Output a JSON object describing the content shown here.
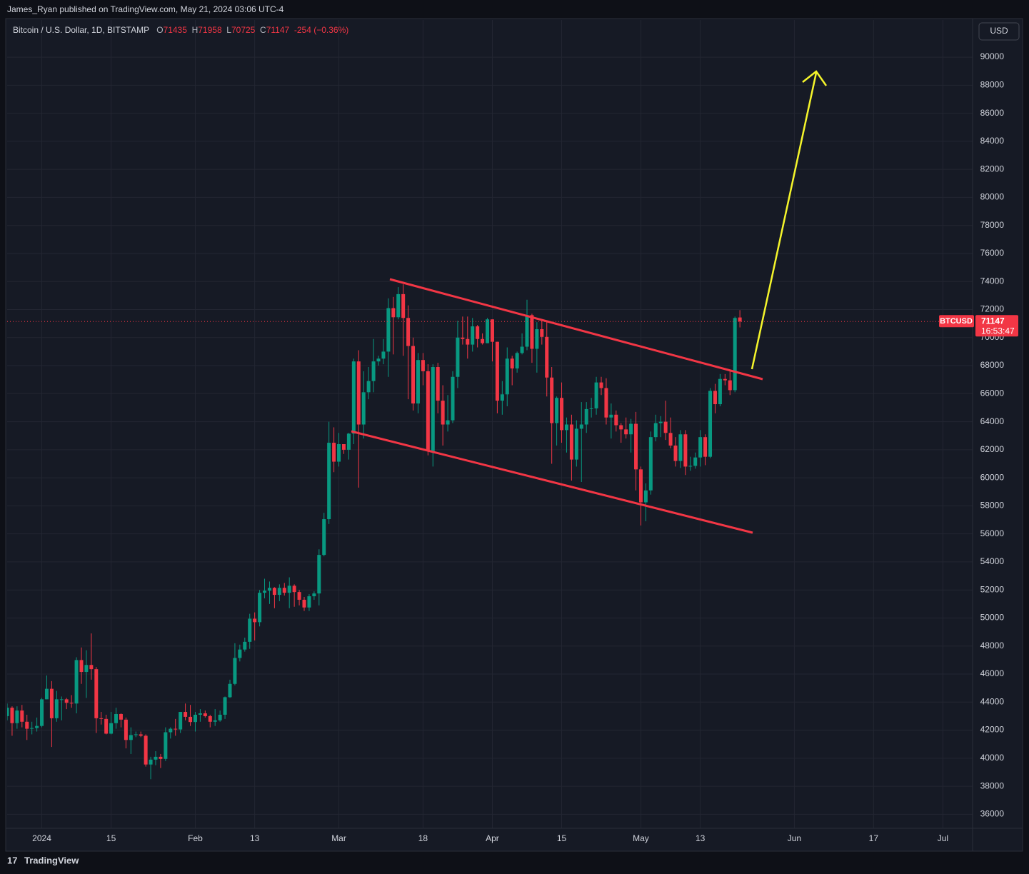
{
  "header": {
    "published": "James_Ryan published on TradingView.com, May 21, 2024 03:06 UTC-4",
    "brand": "TradingView"
  },
  "chart_data": {
    "type": "candlestick",
    "symbol": "Bitcoin / U.S. Dollar, 1D, BITSTAMP",
    "ohlc_labels": {
      "open": "O",
      "high": "H",
      "low": "L",
      "close": "C"
    },
    "change": -254,
    "change_pct": "(−0.36%)",
    "price_tag": "BTCUSD",
    "countdown": "16:53:47",
    "currency": "USD",
    "up_color": "#089981",
    "down_color": "#f23645",
    "grid": true,
    "ylim": [
      35000,
      92550
    ],
    "yticks": [
      36000,
      38000,
      40000,
      42000,
      44000,
      46000,
      48000,
      50000,
      52000,
      54000,
      56000,
      58000,
      60000,
      62000,
      64000,
      66000,
      68000,
      70000,
      72000,
      74000,
      76000,
      78000,
      80000,
      82000,
      84000,
      86000,
      88000,
      90000
    ],
    "xlim": [
      "2023-12-25",
      "2024-07-07"
    ],
    "xticks": [
      {
        "value": "2024-01-01",
        "label": "2024"
      },
      {
        "value": "2024-01-15",
        "label": "15"
      },
      {
        "value": "2024-02-01",
        "label": "Feb"
      },
      {
        "value": "2024-02-13",
        "label": "13"
      },
      {
        "value": "2024-03-01",
        "label": "Mar"
      },
      {
        "value": "2024-03-18",
        "label": "18"
      },
      {
        "value": "2024-04-01",
        "label": "Apr"
      },
      {
        "value": "2024-04-15",
        "label": "15"
      },
      {
        "value": "2024-05-01",
        "label": "May"
      },
      {
        "value": "2024-05-13",
        "label": "13"
      },
      {
        "value": "2024-06-01",
        "label": "Jun"
      },
      {
        "value": "2024-06-17",
        "label": "17"
      },
      {
        "value": "2024-07-01",
        "label": "Jul"
      }
    ],
    "x": [
      "2023-12-25",
      "2023-12-26",
      "2023-12-27",
      "2023-12-28",
      "2023-12-29",
      "2023-12-30",
      "2023-12-31",
      "2024-01-01",
      "2024-01-02",
      "2024-01-03",
      "2024-01-04",
      "2024-01-05",
      "2024-01-06",
      "2024-01-07",
      "2024-01-08",
      "2024-01-09",
      "2024-01-10",
      "2024-01-11",
      "2024-01-12",
      "2024-01-13",
      "2024-01-14",
      "2024-01-15",
      "2024-01-16",
      "2024-01-17",
      "2024-01-18",
      "2024-01-19",
      "2024-01-20",
      "2024-01-21",
      "2024-01-22",
      "2024-01-23",
      "2024-01-24",
      "2024-01-25",
      "2024-01-26",
      "2024-01-27",
      "2024-01-28",
      "2024-01-29",
      "2024-01-30",
      "2024-01-31",
      "2024-02-01",
      "2024-02-02",
      "2024-02-03",
      "2024-02-04",
      "2024-02-05",
      "2024-02-06",
      "2024-02-07",
      "2024-02-08",
      "2024-02-09",
      "2024-02-10",
      "2024-02-11",
      "2024-02-12",
      "2024-02-13",
      "2024-02-14",
      "2024-02-15",
      "2024-02-16",
      "2024-02-17",
      "2024-02-18",
      "2024-02-19",
      "2024-02-20",
      "2024-02-21",
      "2024-02-22",
      "2024-02-23",
      "2024-02-24",
      "2024-02-25",
      "2024-02-26",
      "2024-02-27",
      "2024-02-28",
      "2024-02-29",
      "2024-03-01",
      "2024-03-02",
      "2024-03-03",
      "2024-03-04",
      "2024-03-05",
      "2024-03-06",
      "2024-03-07",
      "2024-03-08",
      "2024-03-09",
      "2024-03-10",
      "2024-03-11",
      "2024-03-12",
      "2024-03-13",
      "2024-03-14",
      "2024-03-15",
      "2024-03-16",
      "2024-03-17",
      "2024-03-18",
      "2024-03-19",
      "2024-03-20",
      "2024-03-21",
      "2024-03-22",
      "2024-03-23",
      "2024-03-24",
      "2024-03-25",
      "2024-03-26",
      "2024-03-27",
      "2024-03-28",
      "2024-03-29",
      "2024-03-30",
      "2024-03-31",
      "2024-04-01",
      "2024-04-02",
      "2024-04-03",
      "2024-04-04",
      "2024-04-05",
      "2024-04-06",
      "2024-04-07",
      "2024-04-08",
      "2024-04-09",
      "2024-04-10",
      "2024-04-11",
      "2024-04-12",
      "2024-04-13",
      "2024-04-14",
      "2024-04-15",
      "2024-04-16",
      "2024-04-17",
      "2024-04-18",
      "2024-04-19",
      "2024-04-20",
      "2024-04-21",
      "2024-04-22",
      "2024-04-23",
      "2024-04-24",
      "2024-04-25",
      "2024-04-26",
      "2024-04-27",
      "2024-04-28",
      "2024-04-29",
      "2024-04-30",
      "2024-05-01",
      "2024-05-02",
      "2024-05-03",
      "2024-05-04",
      "2024-05-05",
      "2024-05-06",
      "2024-05-07",
      "2024-05-08",
      "2024-05-09",
      "2024-05-10",
      "2024-05-11",
      "2024-05-12",
      "2024-05-13",
      "2024-05-14",
      "2024-05-15",
      "2024-05-16",
      "2024-05-17",
      "2024-05-18",
      "2024-05-19",
      "2024-05-20",
      "2024-05-21"
    ],
    "open": [
      43000,
      43600,
      42500,
      43400,
      42600,
      42100,
      42150,
      42300,
      44200,
      44950,
      42850,
      44200,
      44200,
      43950,
      43900,
      47000,
      46150,
      46650,
      46350,
      42850,
      42800,
      41750,
      42500,
      43150,
      42750,
      41300,
      41650,
      41700,
      41600,
      39550,
      39900,
      40100,
      39950,
      41850,
      42100,
      42050,
      43300,
      42950,
      42580,
      43100,
      43200,
      43000,
      42600,
      42700,
      43100,
      44350,
      45300,
      47150,
      47750,
      48300,
      49950,
      49700,
      51800,
      51950,
      52150,
      51650,
      52150,
      51800,
      52300,
      51850,
      51300,
      50750,
      51550,
      51750,
      54500,
      57050,
      62500,
      61150,
      62400,
      62000,
      63150,
      68300,
      63800,
      66100,
      66900,
      68300,
      68500,
      69000,
      72100,
      71450,
      73100,
      71400,
      69400,
      65300,
      68400,
      67600,
      61900,
      67900,
      65500,
      63800,
      64100,
      67200,
      70000,
      69900,
      69500,
      70800,
      69900,
      69600,
      71300,
      69700,
      65500,
      65950,
      68500,
      67800,
      68900,
      69350,
      71600,
      69200,
      70600,
      70050,
      67150,
      63900,
      65700,
      63400,
      63800,
      61300,
      63500,
      63800,
      64900,
      64950,
      66800,
      66400,
      64300,
      64500,
      63750,
      63450,
      63100,
      63850,
      60600,
      58250,
      59100,
      62900,
      63900,
      64000,
      63200,
      62300,
      61200,
      63100,
      60800,
      60850,
      61450,
      62900,
      61500,
      66200,
      65250,
      67050,
      66950,
      66250,
      71435
    ],
    "high": [
      43900,
      43700,
      43700,
      43800,
      43100,
      42600,
      42900,
      44300,
      45900,
      45500,
      44800,
      44400,
      44300,
      44500,
      47200,
      47900,
      47700,
      48900,
      46500,
      43300,
      43100,
      43300,
      43600,
      43200,
      42900,
      42200,
      41900,
      41900,
      41700,
      40100,
      40500,
      40300,
      42200,
      42200,
      42800,
      43300,
      43900,
      43800,
      43300,
      43500,
      43400,
      43100,
      43500,
      43400,
      44400,
      45600,
      48200,
      48100,
      48600,
      50300,
      50400,
      52000,
      52800,
      52600,
      52200,
      52400,
      52500,
      52900,
      52400,
      52000,
      51500,
      51700,
      51900,
      54900,
      57500,
      64000,
      63600,
      63200,
      62400,
      63200,
      68500,
      69100,
      67600,
      67900,
      69900,
      68700,
      69900,
      72800,
      72900,
      73600,
      73800,
      72300,
      70000,
      68900,
      68900,
      68100,
      68100,
      68200,
      66600,
      65900,
      67600,
      71200,
      71500,
      71500,
      71400,
      70900,
      70300,
      71400,
      71300,
      69700,
      66900,
      69300,
      68700,
      69000,
      70300,
      72700,
      71700,
      71100,
      71300,
      71200,
      67900,
      65800,
      66800,
      64300,
      64500,
      64100,
      65400,
      65400,
      65700,
      67200,
      67200,
      67100,
      65300,
      64800,
      63900,
      64300,
      64200,
      64700,
      60800,
      59600,
      63300,
      64500,
      64400,
      65500,
      64300,
      62900,
      63400,
      63400,
      61500,
      61800,
      63400,
      63100,
      66400,
      66700,
      67400,
      67400,
      67700,
      71500,
      71958
    ],
    "low": [
      42700,
      41600,
      42100,
      42200,
      41300,
      41700,
      41900,
      42200,
      44200,
      40800,
      42600,
      42700,
      43500,
      43600,
      43200,
      45300,
      44300,
      45600,
      41800,
      42400,
      41700,
      41700,
      42100,
      42200,
      40700,
      40300,
      41500,
      41500,
      39400,
      38500,
      39500,
      39300,
      39800,
      41400,
      41600,
      41800,
      42700,
      42300,
      41900,
      42600,
      42900,
      42200,
      42300,
      42600,
      42800,
      44300,
      45200,
      46900,
      47600,
      47800,
      48400,
      49400,
      51400,
      51000,
      50700,
      51200,
      51600,
      50700,
      50800,
      50900,
      50500,
      50500,
      51300,
      50900,
      54400,
      56700,
      60400,
      60800,
      61700,
      61300,
      62400,
      59300,
      62800,
      65600,
      66100,
      68000,
      68100,
      67200,
      68800,
      71300,
      68700,
      65600,
      64800,
      64600,
      66600,
      61600,
      60800,
      64600,
      62300,
      63300,
      63900,
      66400,
      69500,
      68500,
      69000,
      69300,
      69500,
      69600,
      68300,
      64600,
      64500,
      65100,
      66600,
      67500,
      68800,
      69100,
      68200,
      67500,
      69500,
      65800,
      61000,
      62300,
      62500,
      61800,
      59800,
      60800,
      59700,
      63200,
      64300,
      64500,
      65900,
      63800,
      62800,
      63300,
      62500,
      62800,
      61800,
      59100,
      56600,
      56900,
      58800,
      62600,
      62900,
      62700,
      62100,
      60800,
      60700,
      60200,
      60500,
      60650,
      60800,
      60900,
      61400,
      64600,
      65100,
      66600,
      65900,
      66100,
      70725
    ],
    "close": [
      43600,
      42500,
      43400,
      42600,
      42100,
      42150,
      42300,
      44200,
      44950,
      42850,
      44200,
      44200,
      43950,
      43900,
      47000,
      46150,
      46650,
      46350,
      42850,
      42800,
      41750,
      42500,
      43150,
      42750,
      41300,
      41650,
      41700,
      41600,
      39550,
      39900,
      40100,
      39950,
      41850,
      42100,
      42050,
      43300,
      42950,
      42580,
      43100,
      43200,
      43000,
      42600,
      42700,
      43100,
      44350,
      45300,
      47150,
      47750,
      48300,
      49950,
      49700,
      51800,
      51950,
      52150,
      51650,
      52150,
      51800,
      52300,
      51850,
      51300,
      50750,
      51550,
      51750,
      54500,
      57050,
      62500,
      61150,
      62400,
      62000,
      63150,
      68300,
      63800,
      66100,
      66900,
      68300,
      68500,
      69000,
      72100,
      71450,
      73100,
      71400,
      69400,
      65300,
      68400,
      67600,
      61900,
      67900,
      65500,
      63800,
      64100,
      67200,
      70000,
      69900,
      69500,
      70800,
      69900,
      69600,
      71300,
      69700,
      65500,
      65950,
      68500,
      67800,
      68900,
      69350,
      71600,
      69200,
      70600,
      70050,
      67150,
      63900,
      65700,
      63400,
      63800,
      61300,
      63500,
      63800,
      64900,
      64950,
      66800,
      66400,
      64300,
      64500,
      63750,
      63450,
      63100,
      63850,
      60600,
      58250,
      59100,
      62900,
      63900,
      64000,
      63200,
      62300,
      61200,
      63100,
      60800,
      60850,
      61450,
      62900,
      61500,
      66200,
      65250,
      67050,
      66950,
      66250,
      71400,
      71147
    ]
  }
}
